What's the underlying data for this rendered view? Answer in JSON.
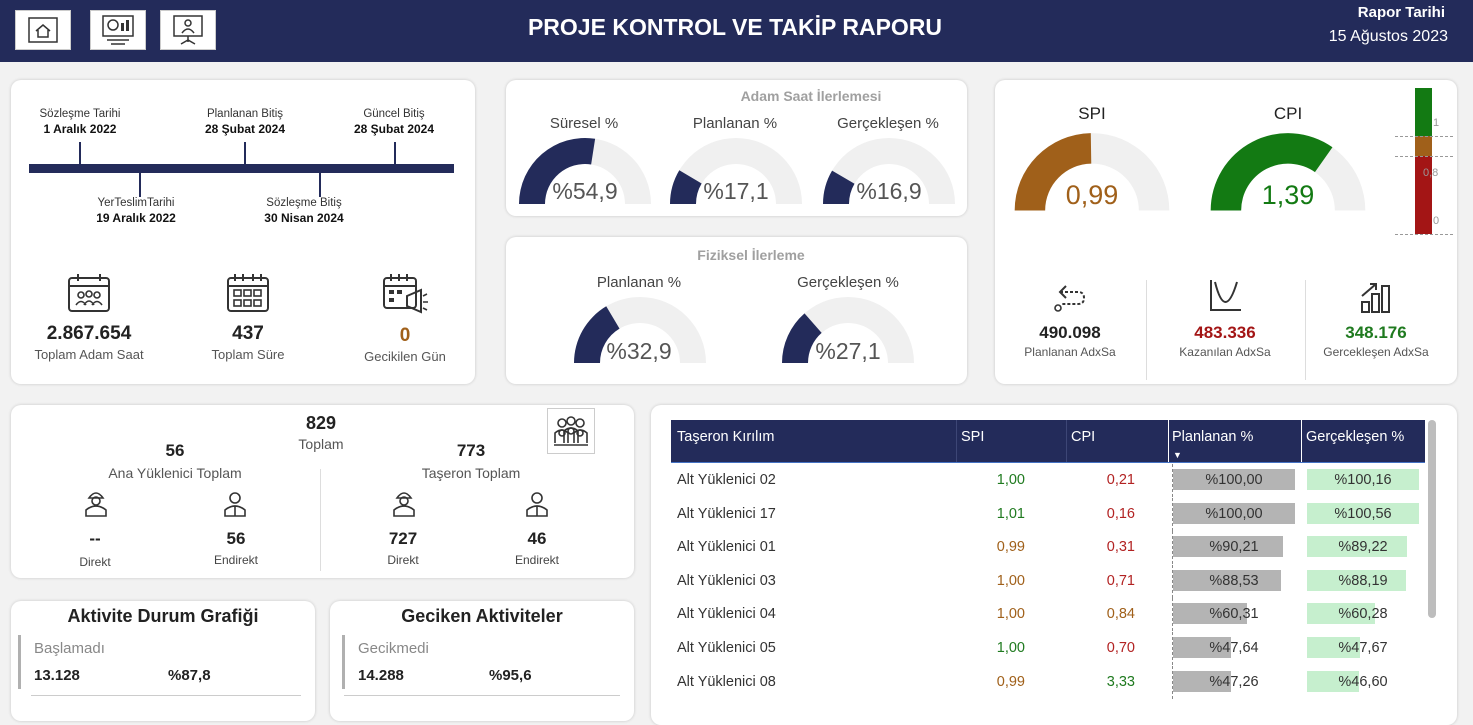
{
  "header": {
    "title": "PROJE KONTROL VE TAKİP RAPORU",
    "report_label": "Rapor Tarihi",
    "report_date": "15 Ağustos 2023"
  },
  "timeline": {
    "contract_date": {
      "label": "Sözleşme Tarihi",
      "value": "1 Aralık 2022"
    },
    "planned_end": {
      "label": "Planlanan Bitiş",
      "value": "28 Şubat 2024"
    },
    "current_end": {
      "label": "Güncel Bitiş",
      "value": "28 Şubat 2024"
    },
    "site_delivery": {
      "label": "YerTeslimTarihi",
      "value": "19 Aralık 2022"
    },
    "contract_end": {
      "label": "Sözleşme Bitiş",
      "value": "30 Nisan 2024"
    }
  },
  "kpis": {
    "man_hours": {
      "value": "2.867.654",
      "label": "Toplam Adam Saat"
    },
    "duration": {
      "value": "437",
      "label": "Toplam Süre"
    },
    "delay": {
      "value": "0",
      "label": "Gecikilen Gün"
    }
  },
  "man_hour_progress": {
    "title": "Adam Saat İlerlemesi",
    "gauges": [
      {
        "label": "Süresel %",
        "value": "%54,9",
        "fraction": 0.549
      },
      {
        "label": "Planlanan %",
        "value": "%17,1",
        "fraction": 0.171
      },
      {
        "label": "Gerçekleşen %",
        "value": "%16,9",
        "fraction": 0.169
      }
    ]
  },
  "physical_progress": {
    "title": "Fiziksel İlerleme",
    "gauges": [
      {
        "label": "Planlanan %",
        "value": "%32,9",
        "fraction": 0.329
      },
      {
        "label": "Gerçekleşen %",
        "value": "%27,1",
        "fraction": 0.271
      }
    ]
  },
  "performance": {
    "spi": {
      "label": "SPI",
      "value": "0,99",
      "fraction": 0.495,
      "color": "#a0601a"
    },
    "cpi": {
      "label": "CPI",
      "value": "1,39",
      "fraction": 0.695,
      "color": "#137a13"
    },
    "scale": {
      "labels": [
        "1",
        "0,8",
        "0"
      ]
    },
    "planned_adxsa": {
      "value": "490.098",
      "label": "Planlanan AdxSa"
    },
    "earned_adxsa": {
      "value": "483.336",
      "label": "Kazanılan AdxSa"
    },
    "actual_adxsa": {
      "value": "348.176",
      "label": "Gercekleşen AdxSa"
    }
  },
  "workforce": {
    "total": {
      "value": "829",
      "label": "Toplam"
    },
    "main": {
      "value": "56",
      "label": "Ana Yüklenici Toplam",
      "direct": {
        "value": "--",
        "label": "Direkt"
      },
      "indirect": {
        "value": "56",
        "label": "Endirekt"
      }
    },
    "sub": {
      "value": "773",
      "label": "Taşeron Toplam",
      "direct": {
        "value": "727",
        "label": "Direkt"
      },
      "indirect": {
        "value": "46",
        "label": "Endirekt"
      }
    }
  },
  "activity_status": {
    "title": "Aktivite Durum Grafiği",
    "label": "Başlamadı",
    "count": "13.128",
    "pct": "%87,8"
  },
  "delayed_activities": {
    "title": "Geciken Aktiviteler",
    "label": "Gecikmedi",
    "count": "14.288",
    "pct": "%95,6"
  },
  "subcontractor_table": {
    "columns": [
      "Taşeron Kırılım",
      "SPI",
      "CPI",
      "Planlanan %",
      "Gerçekleşen %"
    ],
    "rows": [
      {
        "name": "Alt Yüklenici 02",
        "spi": "1,00",
        "cpi": "0,21",
        "planned": "%100,00",
        "planned_f": 1.0,
        "actual": "%100,16",
        "actual_f": 1.0016,
        "spi_color": "#1f7a1f",
        "cpi_color": "#b22222"
      },
      {
        "name": "Alt Yüklenici 17",
        "spi": "1,01",
        "cpi": "0,16",
        "planned": "%100,00",
        "planned_f": 1.0,
        "actual": "%100,56",
        "actual_f": 1.0056,
        "spi_color": "#1f7a1f",
        "cpi_color": "#b22222"
      },
      {
        "name": "Alt Yüklenici 01",
        "spi": "0,99",
        "cpi": "0,31",
        "planned": "%90,21",
        "planned_f": 0.9021,
        "actual": "%89,22",
        "actual_f": 0.8922,
        "spi_color": "#a0601a",
        "cpi_color": "#b22222"
      },
      {
        "name": "Alt Yüklenici 03",
        "spi": "1,00",
        "cpi": "0,71",
        "planned": "%88,53",
        "planned_f": 0.8853,
        "actual": "%88,19",
        "actual_f": 0.8819,
        "spi_color": "#a0601a",
        "cpi_color": "#b22222"
      },
      {
        "name": "Alt Yüklenici 04",
        "spi": "1,00",
        "cpi": "0,84",
        "planned": "%60,31",
        "planned_f": 0.6031,
        "actual": "%60,28",
        "actual_f": 0.6028,
        "spi_color": "#a0601a",
        "cpi_color": "#a0601a"
      },
      {
        "name": "Alt Yüklenici 05",
        "spi": "1,00",
        "cpi": "0,70",
        "planned": "%47,64",
        "planned_f": 0.4764,
        "actual": "%47,67",
        "actual_f": 0.4767,
        "spi_color": "#1f7a1f",
        "cpi_color": "#b22222"
      },
      {
        "name": "Alt Yüklenici 08",
        "spi": "0,99",
        "cpi": "3,33",
        "planned": "%47,26",
        "planned_f": 0.4726,
        "actual": "%46,60",
        "actual_f": 0.466,
        "spi_color": "#a0601a",
        "cpi_color": "#1f7a1f"
      }
    ]
  }
}
